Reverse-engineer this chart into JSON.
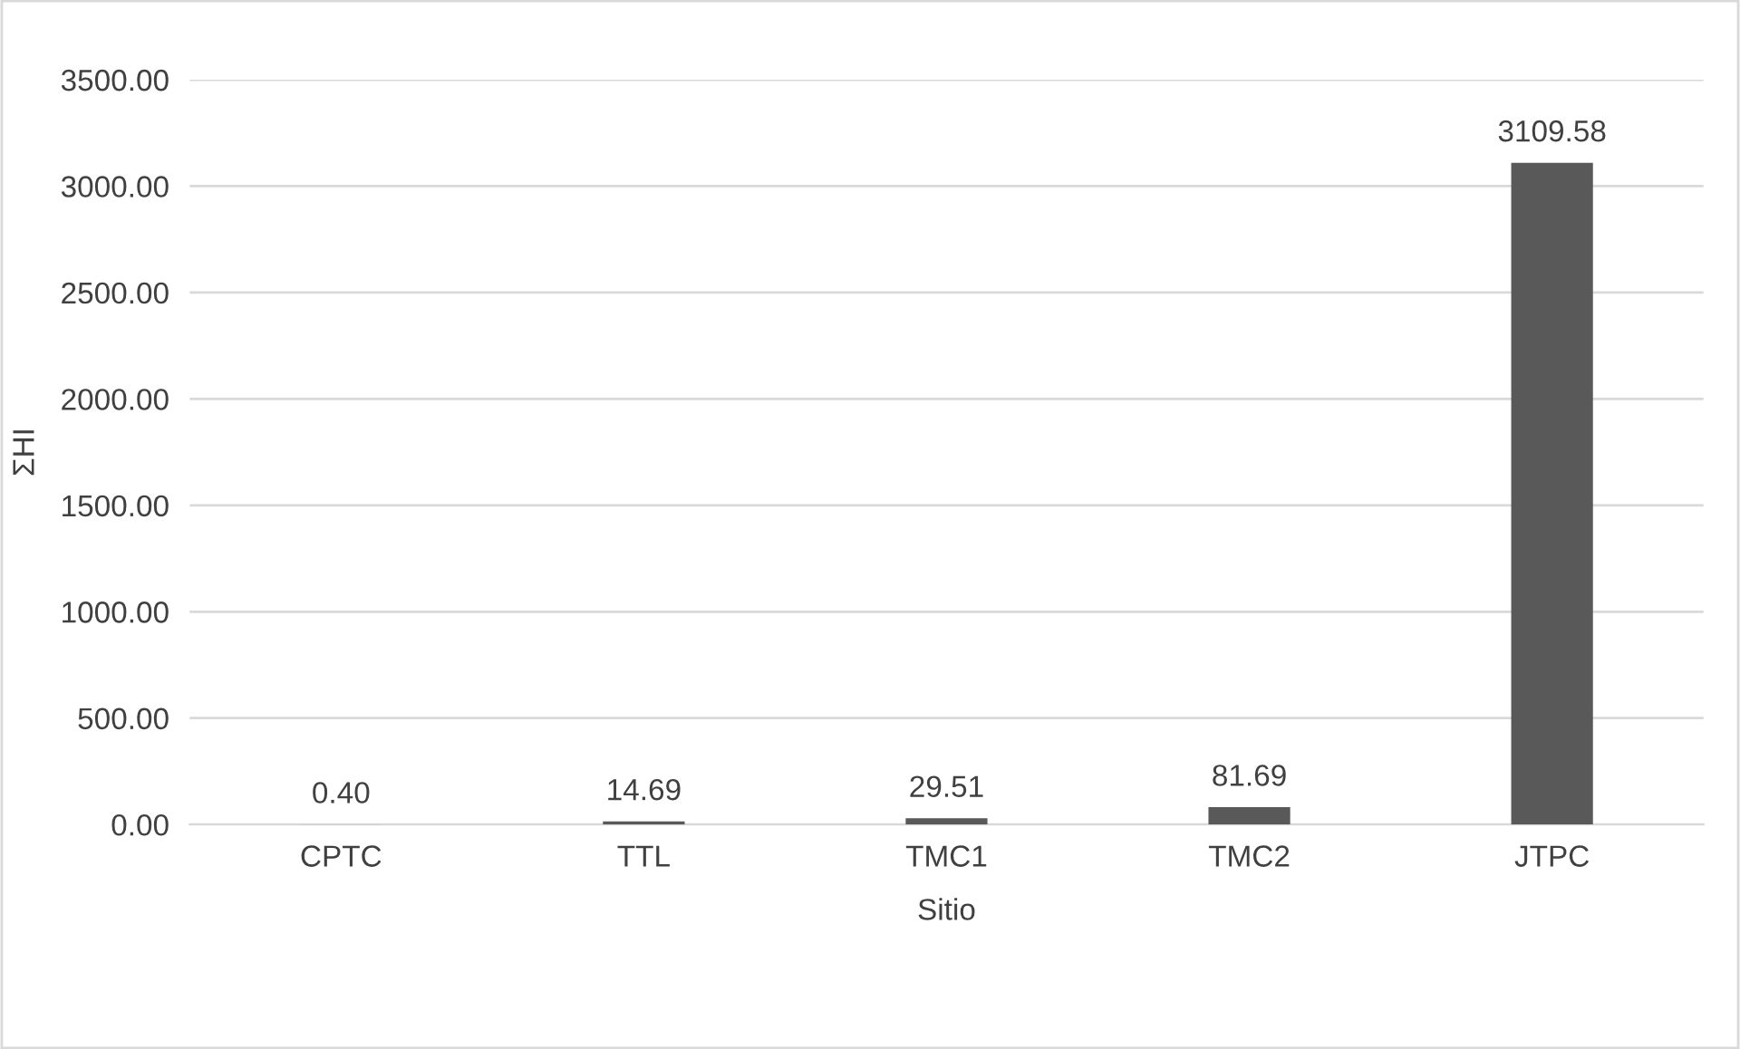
{
  "chart_data": {
    "type": "bar",
    "xlabel": "Sitio",
    "ylabel": "ΣHI",
    "categories": [
      "CPTC",
      "TTL",
      "TMC1",
      "TMC2",
      "JTPC"
    ],
    "values": [
      0.4,
      14.69,
      29.51,
      81.69,
      3109.58
    ],
    "value_labels": [
      "0.40",
      "14.69",
      "29.51",
      "81.69",
      "3109.58"
    ],
    "color": "#595959",
    "ylim": [
      0,
      3500
    ],
    "yticks": [
      {
        "value": 0,
        "label": "0.00"
      },
      {
        "value": 500,
        "label": "500.00"
      },
      {
        "value": 1000,
        "label": "1000.00"
      },
      {
        "value": 1500,
        "label": "1500.00"
      },
      {
        "value": 2000,
        "label": "2000.00"
      },
      {
        "value": 2500,
        "label": "2500.00"
      },
      {
        "value": 3000,
        "label": "3000.00"
      },
      {
        "value": 3500,
        "label": "3500.00"
      }
    ],
    "grid": "y"
  }
}
